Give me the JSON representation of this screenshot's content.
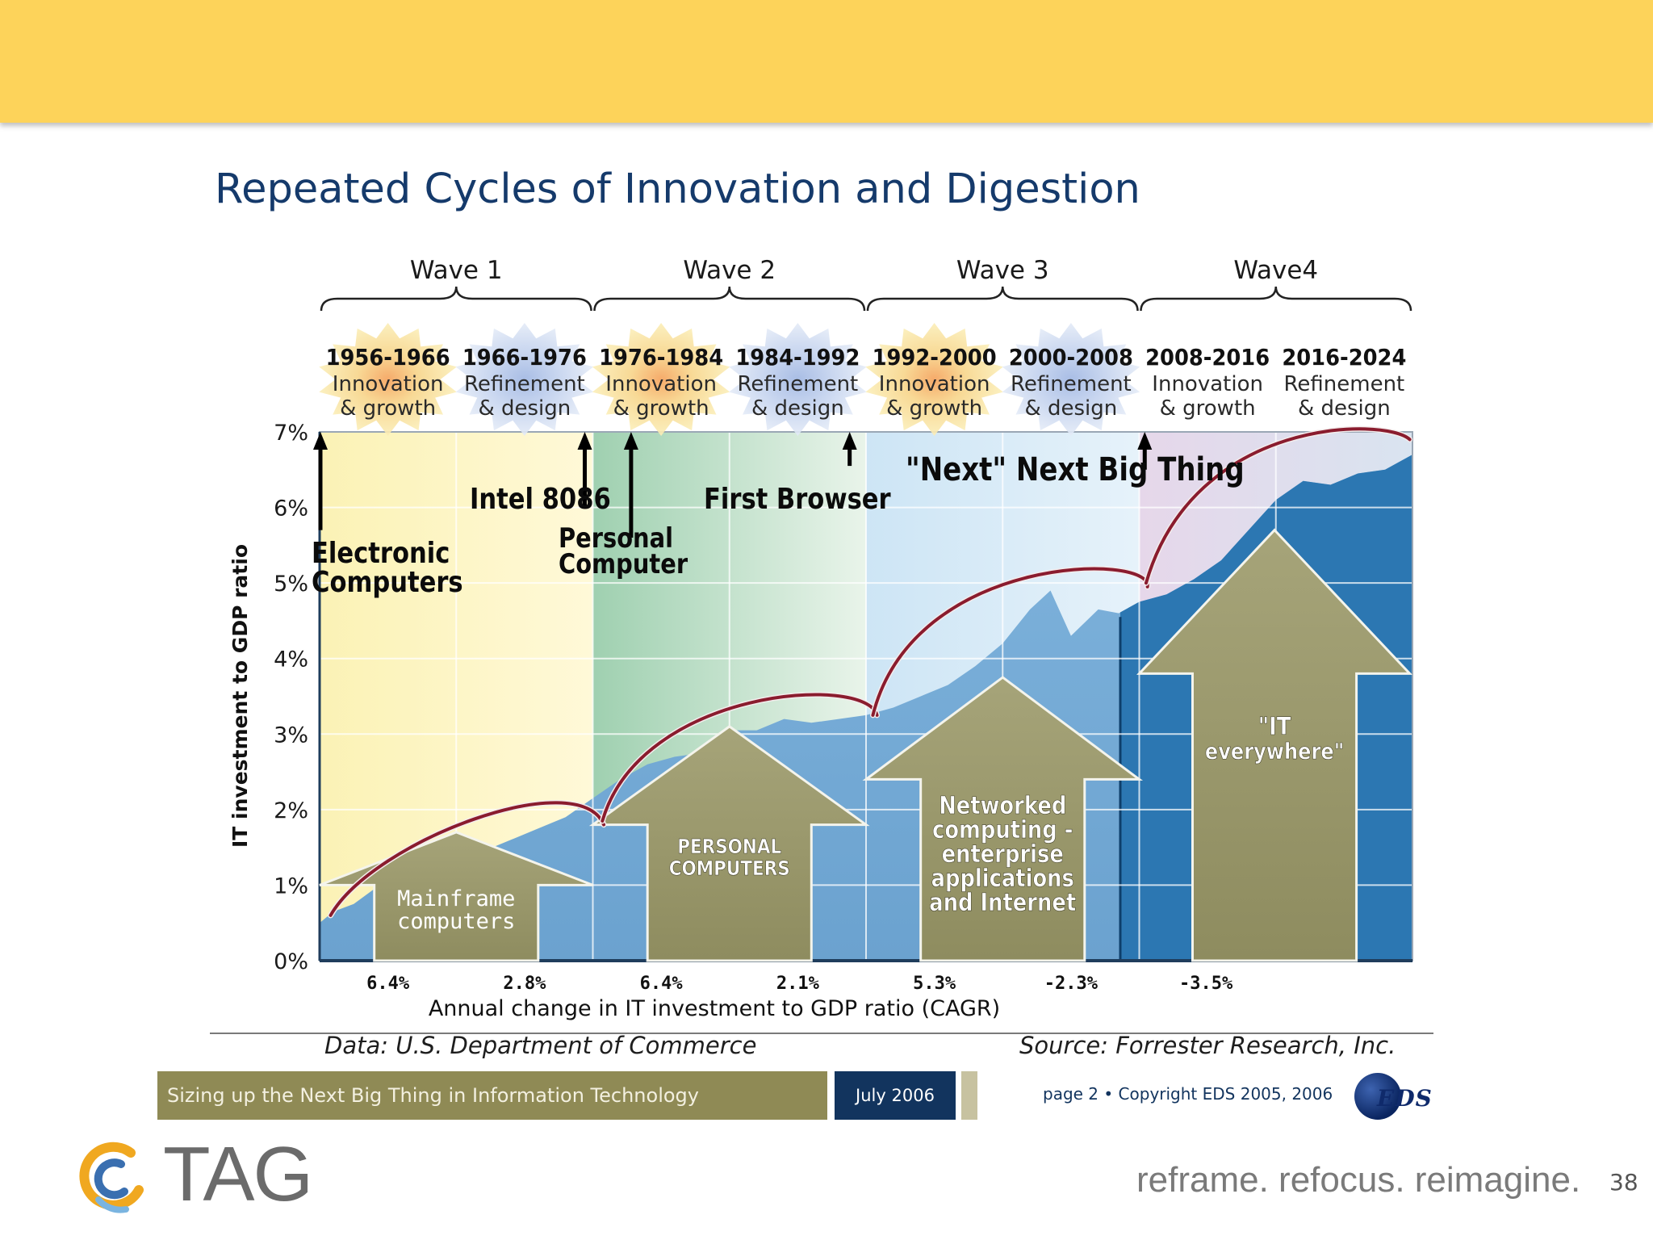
{
  "slide": {
    "title": "Repeated Cycles of Innovation and Digestion",
    "page_number": "38"
  },
  "chart_data": {
    "type": "area",
    "title": "Repeated Cycles of Innovation and Digestion",
    "ylabel": "IT investment to GDP ratio",
    "xlabel": "Annual change in IT investment to GDP ratio (CAGR)",
    "ylim": [
      0,
      7
    ],
    "y_ticks": [
      "7%",
      "6%",
      "5%",
      "4%",
      "3%",
      "2%",
      "1%",
      "0%"
    ],
    "waves": [
      "Wave 1",
      "Wave 2",
      "Wave 3",
      "Wave4"
    ],
    "periods": [
      {
        "years": "1956-1966",
        "l1": "Innovation",
        "l2": "& growth"
      },
      {
        "years": "1966-1976",
        "l1": "Refinement",
        "l2": "& design"
      },
      {
        "years": "1976-1984",
        "l1": "Innovation",
        "l2": "& growth"
      },
      {
        "years": "1984-1992",
        "l1": "Refinement",
        "l2": "& design"
      },
      {
        "years": "1992-2000",
        "l1": "Innovation",
        "l2": "& growth"
      },
      {
        "years": "2000-2008",
        "l1": "Refinement",
        "l2": "& design"
      },
      {
        "years": "2008-2016",
        "l1": "Innovation",
        "l2": "& growth"
      },
      {
        "years": "2016-2024",
        "l1": "Refinement",
        "l2": "& design"
      }
    ],
    "cagr": [
      "6.4%",
      "2.8%",
      "6.4%",
      "2.1%",
      "5.3%",
      "-2.3%",
      "-3.5%",
      ""
    ],
    "series": [
      {
        "name": "IT investment to GDP ratio",
        "x": [
          0,
          0.1,
          0.25,
          0.4,
          0.5,
          0.7,
          0.85,
          1.0,
          1.2,
          1.4,
          1.6,
          1.8,
          2.0,
          2.2,
          2.4,
          2.6,
          2.8,
          3.0,
          3.2,
          3.4,
          3.6,
          3.8,
          4.0,
          4.2,
          4.4,
          4.6,
          4.8,
          5.0,
          5.2,
          5.35,
          5.5,
          5.7,
          5.85,
          6.0,
          6.2,
          6.4,
          6.6,
          6.8,
          7.0,
          7.2,
          7.4,
          7.6,
          7.8,
          8.0
        ],
        "values": [
          0.5,
          0.65,
          0.75,
          0.95,
          1.0,
          1.1,
          1.2,
          1.3,
          1.45,
          1.6,
          1.75,
          1.9,
          2.15,
          2.4,
          2.6,
          2.7,
          2.75,
          3.05,
          3.05,
          3.2,
          3.15,
          3.2,
          3.25,
          3.35,
          3.5,
          3.65,
          3.9,
          4.2,
          4.65,
          4.9,
          4.3,
          4.65,
          4.6,
          4.75,
          4.85,
          5.05,
          5.3,
          5.7,
          6.1,
          6.35,
          6.3,
          6.45,
          6.5,
          6.7
        ]
      }
    ],
    "big_arrows": [
      {
        "label_l1": "Mainframe",
        "label_l2": "computers"
      },
      {
        "label_l1": "PERSONAL",
        "label_l2": "COMPUTERS"
      },
      {
        "label_l1": "Networked",
        "label_l2": "computing -",
        "label_l3": "enterprise",
        "label_l4": "applications",
        "label_l5": "and Internet"
      },
      {
        "label_l1": "\"IT",
        "label_l2": "everywhere\""
      }
    ],
    "annotations": {
      "electronic_l1": "Electronic",
      "electronic_l2": "Computers",
      "intel": "Intel 8086",
      "pc_l1": "Personal",
      "pc_l2": "Computer",
      "browser": "First Browser",
      "next": "\"Next\" Next Big Thing"
    },
    "colors": {
      "area": "#7aadd8",
      "area_late": "#2c77b2",
      "arrow_fill": "#9a9868",
      "curve": "#8a1c2e",
      "wave1_bg": "#fbf3b8",
      "wave2_bg": "#cfe6d2",
      "wave3_bg": "#d4e8f5",
      "wave4_bg": "#eadcea"
    }
  },
  "sources": {
    "data": "Data: U.S. Department of Commerce",
    "source": "Source: Forrester Research, Inc."
  },
  "footer": {
    "subject": "Sizing up the Next Big Thing in Information Technology",
    "date": "July 2006",
    "copyright": "page  2 • Copyright EDS 2005, 2006",
    "logo_text": "EDS"
  },
  "brand": {
    "name": "TAG",
    "tagline": "reframe. refocus. reimagine."
  }
}
